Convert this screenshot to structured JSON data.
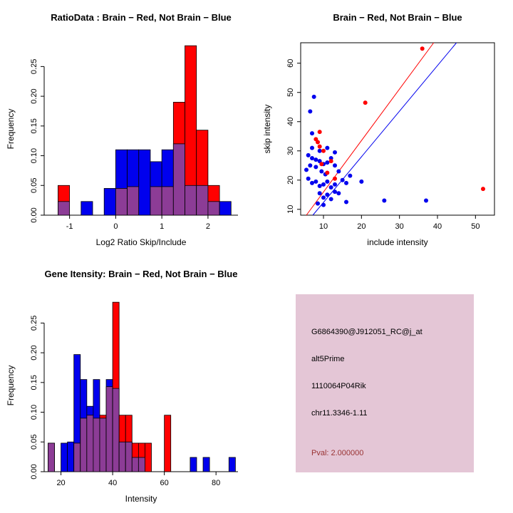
{
  "colors": {
    "red": "#FF0000",
    "blue": "#0000EE",
    "purple": "#8C3C96",
    "pval": "#993333",
    "axis": "#000000",
    "info_bg": "#E4C6D6"
  },
  "chart_data": [
    {
      "type": "histogram",
      "title": "RatioData : Brain − Red, Not Brain − Blue",
      "xlabel": "Log2 Ratio Skip/Include",
      "ylabel": "Frequency",
      "bin_start": -1.25,
      "bin_width": 0.25,
      "series_blue": [
        0.023,
        0,
        0.023,
        0,
        0.045,
        0.11,
        0.11,
        0.11,
        0.09,
        0.11,
        0.12,
        0.05,
        0.05,
        0.023,
        0.023
      ],
      "series_red": [
        0.05,
        0,
        0,
        0,
        0,
        0.045,
        0.048,
        0,
        0.048,
        0.048,
        0.19,
        0.285,
        0.143,
        0.05,
        0
      ],
      "xlim": [
        -1.55,
        2.65
      ],
      "ylim": [
        0,
        0.29
      ],
      "xticks": [
        -1,
        0,
        1,
        2
      ],
      "xtick_labels": [
        "-1",
        "0",
        "1",
        "2"
      ],
      "yticks": [
        0,
        0.05,
        0.1,
        0.15,
        0.2,
        0.25
      ],
      "ytick_labels": [
        "0.00",
        "0.05",
        "0.10",
        "0.15",
        "0.20",
        "0.25"
      ],
      "box": false,
      "legend": "Brain = red, Not Brain = blue, overlap = purple"
    },
    {
      "type": "scatter",
      "title": "Brain − Red, Not Brain − Blue",
      "xlabel": "include intensity",
      "ylabel": "skip intensity",
      "xlim": [
        4,
        55
      ],
      "ylim": [
        8,
        67
      ],
      "xticks": [
        10,
        20,
        30,
        40,
        50
      ],
      "xtick_labels": [
        "10",
        "20",
        "30",
        "40",
        "50"
      ],
      "yticks": [
        10,
        20,
        30,
        40,
        50,
        60
      ],
      "ytick_labels": [
        "10",
        "20",
        "30",
        "40",
        "50",
        "60"
      ],
      "box": true,
      "lines": [
        {
          "color_key": "red",
          "x1": 5.5,
          "y1": 8,
          "x2": 39,
          "y2": 67
        },
        {
          "color_key": "blue",
          "x1": 7.2,
          "y1": 8,
          "x2": 45,
          "y2": 67
        }
      ],
      "points": [
        [
          7.5,
          48.5,
          "b"
        ],
        [
          6.5,
          43.5,
          "b"
        ],
        [
          7,
          36,
          "b"
        ],
        [
          6,
          28.5,
          "b"
        ],
        [
          7,
          27.5,
          "b"
        ],
        [
          8,
          27,
          "b"
        ],
        [
          9,
          26.5,
          "b"
        ],
        [
          6.5,
          25,
          "b"
        ],
        [
          8,
          24.5,
          "b"
        ],
        [
          9.5,
          23,
          "b"
        ],
        [
          10,
          25.5,
          "b"
        ],
        [
          10.5,
          22,
          "b"
        ],
        [
          11,
          26,
          "b"
        ],
        [
          12,
          27.5,
          "b"
        ],
        [
          6,
          20.5,
          "b"
        ],
        [
          7,
          19,
          "b"
        ],
        [
          8,
          19.5,
          "b"
        ],
        [
          9,
          18,
          "b"
        ],
        [
          10,
          18.5,
          "b"
        ],
        [
          11,
          19.5,
          "b"
        ],
        [
          12,
          17.5,
          "b"
        ],
        [
          13,
          18.5,
          "b"
        ],
        [
          9,
          15.5,
          "b"
        ],
        [
          10,
          14,
          "b"
        ],
        [
          11,
          15,
          "b"
        ],
        [
          12,
          13.5,
          "b"
        ],
        [
          13,
          16,
          "b"
        ],
        [
          14,
          15.5,
          "b"
        ],
        [
          8.5,
          12,
          "b"
        ],
        [
          10,
          11.5,
          "b"
        ],
        [
          15,
          20,
          "b"
        ],
        [
          16,
          19,
          "b"
        ],
        [
          17,
          21.5,
          "b"
        ],
        [
          13,
          25,
          "b"
        ],
        [
          14,
          23,
          "b"
        ],
        [
          20,
          19.5,
          "b"
        ],
        [
          26,
          13,
          "b"
        ],
        [
          37,
          13,
          "b"
        ],
        [
          16,
          12.5,
          "b"
        ],
        [
          7,
          31,
          "b"
        ],
        [
          9,
          30,
          "b"
        ],
        [
          11,
          31,
          "b"
        ],
        [
          13,
          29.5,
          "b"
        ],
        [
          5.5,
          23.5,
          "b"
        ],
        [
          8,
          34,
          "r"
        ],
        [
          9,
          36.5,
          "r"
        ],
        [
          8.5,
          33,
          "r"
        ],
        [
          9,
          31.5,
          "r"
        ],
        [
          10,
          30,
          "r"
        ],
        [
          12,
          26.5,
          "r"
        ],
        [
          9.5,
          25.5,
          "r"
        ],
        [
          21,
          46.5,
          "r"
        ],
        [
          36,
          65,
          "r"
        ],
        [
          52,
          17,
          "r"
        ],
        [
          11,
          22.5,
          "r"
        ],
        [
          13,
          20.5,
          "r"
        ]
      ]
    },
    {
      "type": "histogram",
      "title": "Gene Itensity: Brain − Red, Not Brain − Blue",
      "xlabel": "Intensity",
      "ylabel": "Frequency",
      "bin_start": 15,
      "bin_width": 2.5,
      "series_blue": [
        0.048,
        0,
        0.048,
        0.05,
        0.197,
        0.155,
        0.11,
        0.155,
        0.09,
        0.155,
        0.14,
        0.05,
        0.05,
        0.024,
        0.024,
        0,
        0,
        0,
        0,
        0,
        0,
        0,
        0.024,
        0,
        0.024,
        0,
        0,
        0,
        0.024
      ],
      "series_red": [
        0.048,
        0,
        0,
        0,
        0.048,
        0.09,
        0.095,
        0.09,
        0.095,
        0.143,
        0.285,
        0.095,
        0.095,
        0.048,
        0.048,
        0.048,
        0,
        0,
        0.095,
        0,
        0,
        0,
        0,
        0,
        0,
        0,
        0,
        0,
        0
      ],
      "xlim": [
        13.5,
        88.5
      ],
      "ylim": [
        0,
        0.29
      ],
      "xticks": [
        20,
        40,
        60,
        80
      ],
      "xtick_labels": [
        "20",
        "40",
        "60",
        "80"
      ],
      "yticks": [
        0,
        0.05,
        0.1,
        0.15,
        0.2,
        0.25
      ],
      "ytick_labels": [
        "0.00",
        "0.05",
        "0.10",
        "0.15",
        "0.20",
        "0.25"
      ],
      "box": false,
      "legend": "Brain = red, Not Brain = blue, overlap = purple"
    }
  ],
  "info_panel": {
    "lines": [
      {
        "text": "G6864390@J912051_RC@j_at"
      },
      {
        "text": "alt5Prime"
      },
      {
        "text": "1110064P04Rik"
      },
      {
        "text": "chr11.3346-1.11"
      },
      {
        "text": "Pval: 2.000000"
      }
    ]
  }
}
